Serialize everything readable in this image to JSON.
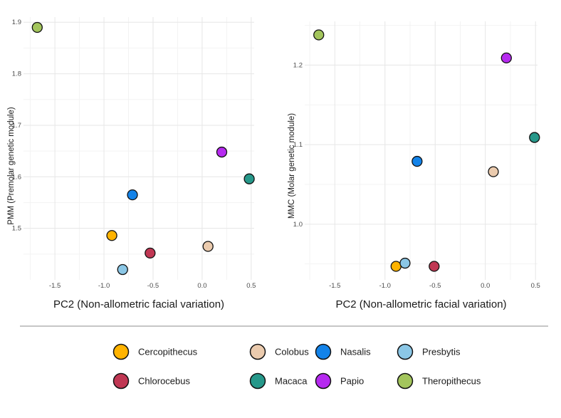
{
  "chart_data": [
    {
      "type": "scatter",
      "xlabel": "PC2 (Non-allometric facial variation)",
      "ylabel": "PMM (Premolar genetic module)",
      "xlim": [
        -1.82,
        0.53
      ],
      "ylim": [
        1.4,
        1.91
      ],
      "xticks": [
        -1.5,
        -1.0,
        -0.5,
        0.0,
        0.5
      ],
      "yticks": [
        1.5,
        1.6,
        1.7,
        1.8,
        1.9
      ],
      "grid": true,
      "points": [
        {
          "label": "Cercopithecus",
          "x": -0.92,
          "y": 1.486
        },
        {
          "label": "Chlorocebus",
          "x": -0.53,
          "y": 1.452
        },
        {
          "label": "Colobus",
          "x": 0.06,
          "y": 1.465
        },
        {
          "label": "Macaca",
          "x": 0.48,
          "y": 1.596
        },
        {
          "label": "Nasalis",
          "x": -0.71,
          "y": 1.565
        },
        {
          "label": "Papio",
          "x": 0.2,
          "y": 1.648
        },
        {
          "label": "Presbytis",
          "x": -0.81,
          "y": 1.42
        },
        {
          "label": "Theropithecus",
          "x": -1.68,
          "y": 1.89
        }
      ]
    },
    {
      "type": "scatter",
      "xlabel": "PC2 (Non-allometric facial variation)",
      "ylabel": "MMC (Molar genetic module)",
      "xlim": [
        -1.8,
        0.52
      ],
      "ylim": [
        0.93,
        1.255
      ],
      "xticks": [
        -1.5,
        -1.0,
        -0.5,
        0.0,
        0.5
      ],
      "yticks": [
        1.0,
        1.1,
        1.2
      ],
      "grid": true,
      "points": [
        {
          "label": "Cercopithecus",
          "x": -0.89,
          "y": 0.947
        },
        {
          "label": "Chlorocebus",
          "x": -0.51,
          "y": 0.947
        },
        {
          "label": "Colobus",
          "x": 0.08,
          "y": 1.066
        },
        {
          "label": "Macaca",
          "x": 0.49,
          "y": 1.109
        },
        {
          "label": "Nasalis",
          "x": -0.68,
          "y": 1.079
        },
        {
          "label": "Papio",
          "x": 0.21,
          "y": 1.209
        },
        {
          "label": "Presbytis",
          "x": -0.8,
          "y": 0.951
        },
        {
          "label": "Theropithecus",
          "x": -1.66,
          "y": 1.238
        }
      ]
    }
  ],
  "legend": {
    "placement": "bottom",
    "entries": [
      {
        "name": "Cercopithecus",
        "color": "#FFB300"
      },
      {
        "name": "Colobus",
        "color": "#EBCBAE"
      },
      {
        "name": "Nasalis",
        "color": "#1383E9"
      },
      {
        "name": "Presbytis",
        "color": "#8BC7E6"
      },
      {
        "name": "Chlorocebus",
        "color": "#C03753"
      },
      {
        "name": "Macaca",
        "color": "#26988A"
      },
      {
        "name": "Papio",
        "color": "#B62AF0"
      },
      {
        "name": "Theropithecus",
        "color": "#A3C55C"
      }
    ]
  }
}
